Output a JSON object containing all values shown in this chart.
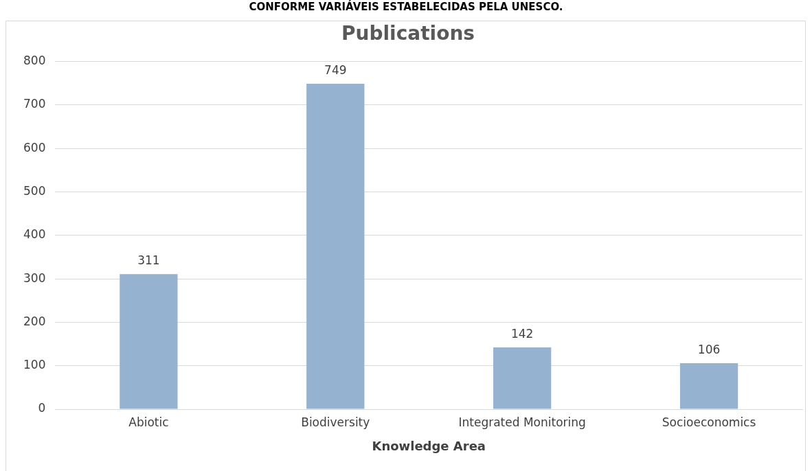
{
  "chart_data": {
    "type": "bar",
    "title": "Publications",
    "xlabel": "Knowledge Area",
    "annotations": [
      "CONFORME VARIÁVEIS ESTABELECIDAS PELA UNESCO."
    ],
    "categories": [
      "Abiotic",
      "Biodiversity",
      "Integrated Monitoring",
      "Socioeconomics"
    ],
    "values": [
      311,
      749,
      142,
      106
    ],
    "color": "#95b3d1",
    "ylim": [
      0,
      800
    ],
    "yticks": [
      0,
      100,
      200,
      300,
      400,
      500,
      600,
      700,
      800
    ],
    "grid": "y",
    "data_labels": true,
    "legend": false
  }
}
